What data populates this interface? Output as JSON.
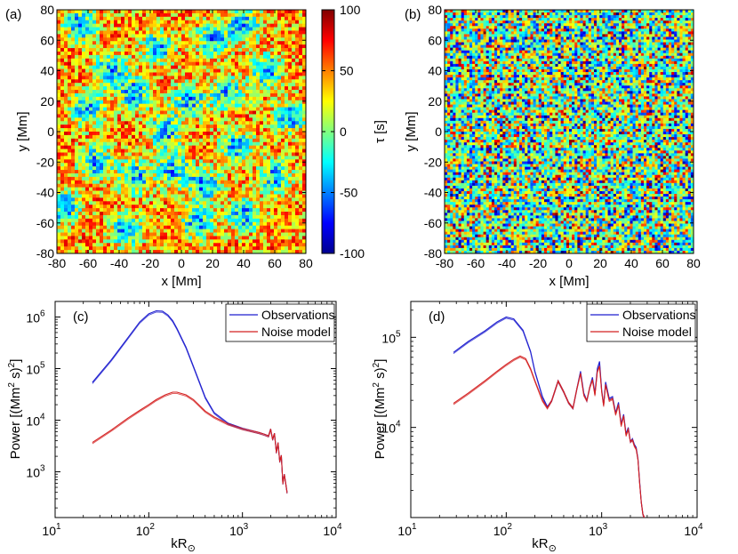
{
  "chart_data": [
    {
      "panel": "(a)",
      "type": "heatmap",
      "xlabel": "x [Mm]",
      "ylabel": "y [Mm]",
      "xlim": [
        -80,
        80
      ],
      "ylim": [
        -80,
        80
      ],
      "xticks": [
        "-80",
        "-60",
        "-40",
        "-20",
        "0",
        "20",
        "40",
        "60",
        "80"
      ],
      "yticks": [
        "-80",
        "-60",
        "-40",
        "-20",
        "0",
        "20",
        "40",
        "60",
        "80"
      ],
      "colorbar": {
        "label": "τ [s]",
        "range": [
          -100,
          100
        ],
        "ticks": [
          "100",
          "50",
          "0",
          "-50",
          "-100"
        ]
      },
      "description_values": {
        "cells": [
          [
            -65,
            70
          ],
          [
            -45,
            40
          ],
          [
            -30,
            25
          ],
          [
            -60,
            15
          ],
          [
            -55,
            -20
          ],
          [
            -30,
            -30
          ],
          [
            -5,
            -25
          ],
          [
            15,
            -35
          ],
          [
            35,
            -10
          ],
          [
            55,
            40
          ],
          [
            20,
            60
          ],
          [
            -15,
            55
          ],
          [
            40,
            70
          ],
          [
            -35,
            -65
          ],
          [
            10,
            -60
          ],
          [
            40,
            -55
          ],
          [
            60,
            -30
          ],
          [
            -75,
            -50
          ],
          [
            5,
            20
          ],
          [
            30,
            25
          ],
          [
            -10,
            0
          ],
          [
            70,
            10
          ]
        ]
      }
    },
    {
      "panel": "(b)",
      "type": "heatmap",
      "xlabel": "x [Mm]",
      "ylabel": "y [Mm]",
      "xlim": [
        -80,
        80
      ],
      "ylim": [
        -80,
        80
      ],
      "xticks": [
        "-80",
        "-60",
        "-40",
        "-20",
        "0",
        "20",
        "40",
        "60",
        "80"
      ],
      "yticks": [
        "-80",
        "-60",
        "-40",
        "-20",
        "0",
        "20",
        "40",
        "60",
        "80"
      ]
    },
    {
      "panel": "(c)",
      "type": "line",
      "xscale": "log",
      "yscale": "log",
      "xlabel": "kR",
      "xlabel_sub": "⊙",
      "ylabel": "Power [(Mm",
      "ylabel_sup1": "2",
      "ylabel_mid": " s)",
      "ylabel_sup2": "2",
      "ylabel_end": "]",
      "xlim": [
        10,
        10000
      ],
      "ylim": [
        130,
        2000000
      ],
      "xticks": [
        {
          "base": "10",
          "exp": "1",
          "v": 10
        },
        {
          "base": "10",
          "exp": "2",
          "v": 100
        },
        {
          "base": "10",
          "exp": "3",
          "v": 1000
        },
        {
          "base": "10",
          "exp": "4",
          "v": 10000
        }
      ],
      "yticks": [
        {
          "base": "10",
          "exp": "3",
          "v": 1000
        },
        {
          "base": "10",
          "exp": "4",
          "v": 10000
        },
        {
          "base": "10",
          "exp": "5",
          "v": 100000
        },
        {
          "base": "10",
          "exp": "6",
          "v": 1000000
        }
      ],
      "legend": [
        "Observations",
        "Noise model"
      ],
      "series": [
        {
          "name": "Observations",
          "color": "#1f1fcf",
          "x": [
            25,
            40,
            60,
            80,
            100,
            120,
            140,
            160,
            180,
            200,
            250,
            300,
            400,
            500,
            700,
            1000,
            1500,
            1700,
            1900,
            2000,
            2100,
            2200,
            2300,
            2400,
            2500,
            2600,
            2700,
            2800,
            3000
          ],
          "y": [
            54000,
            150000,
            400000,
            800000,
            1150000,
            1320000,
            1300000,
            1100000,
            850000,
            600000,
            260000,
            110000,
            28000,
            14000,
            8800,
            7000,
            5800,
            5400,
            5000,
            6800,
            4300,
            5600,
            2400,
            3700,
            1600,
            2100,
            600,
            900,
            400
          ]
        },
        {
          "name": "Noise model",
          "color": "#d42020",
          "x": [
            25,
            40,
            60,
            80,
            100,
            120,
            150,
            180,
            200,
            250,
            300,
            400,
            500,
            700,
            1000,
            1500,
            1700,
            1900,
            2000,
            2100,
            2200,
            2300,
            2400,
            2500,
            2600,
            2700,
            2800,
            3000
          ],
          "y": [
            3700,
            6500,
            11000,
            15500,
            20000,
            25000,
            31000,
            35000,
            35000,
            31000,
            25000,
            15000,
            11500,
            8500,
            6900,
            5800,
            5400,
            5000,
            6800,
            4300,
            5600,
            2400,
            3700,
            1600,
            2100,
            600,
            900,
            400
          ]
        }
      ]
    },
    {
      "panel": "(d)",
      "type": "line",
      "xscale": "log",
      "yscale": "log",
      "xlabel": "kR",
      "xlabel_sub": "⊙",
      "ylabel": "Power [(Mm",
      "ylabel_sup1": "2",
      "ylabel_mid": " s)",
      "ylabel_sup2": "2",
      "ylabel_end": "]",
      "xlim": [
        10,
        10000
      ],
      "ylim": [
        1000,
        250000
      ],
      "xticks": [
        {
          "base": "10",
          "exp": "1",
          "v": 10
        },
        {
          "base": "10",
          "exp": "2",
          "v": 100
        },
        {
          "base": "10",
          "exp": "3",
          "v": 1000
        },
        {
          "base": "10",
          "exp": "4",
          "v": 10000
        }
      ],
      "yticks": [
        {
          "base": "10",
          "exp": "4",
          "v": 10000
        },
        {
          "base": "10",
          "exp": "5",
          "v": 100000
        }
      ],
      "legend": [
        "Observations",
        "Noise model"
      ],
      "series": [
        {
          "name": "Observations",
          "color": "#1f1fcf",
          "x": [
            28,
            40,
            60,
            80,
            100,
            120,
            150,
            180,
            200,
            240,
            270,
            300,
            350,
            400,
            450,
            500,
            550,
            600,
            650,
            700,
            750,
            800,
            850,
            900,
            950,
            1000,
            1050,
            1100,
            1200,
            1300,
            1400,
            1500,
            1600,
            1700,
            1800,
            1900,
            2000,
            2100,
            2200,
            2300,
            2400,
            2500,
            2600,
            2700,
            2800
          ],
          "y": [
            68000,
            90000,
            118000,
            148000,
            168000,
            160000,
            120000,
            70000,
            42000,
            22000,
            17000,
            20000,
            33000,
            25000,
            19000,
            16500,
            27000,
            42000,
            24000,
            20000,
            28000,
            36000,
            24000,
            45000,
            54000,
            26000,
            18000,
            32000,
            21000,
            22000,
            14500,
            19000,
            11000,
            14000,
            8500,
            10000,
            7000,
            7500,
            6500,
            6000,
            4500,
            2500,
            1500,
            1100,
            1000
          ]
        },
        {
          "name": "Noise model",
          "color": "#d42020",
          "x": [
            28,
            40,
            60,
            80,
            100,
            120,
            140,
            160,
            180,
            200,
            240,
            270,
            300,
            350,
            400,
            450,
            500,
            550,
            600,
            650,
            700,
            750,
            800,
            850,
            900,
            950,
            1000,
            1050,
            1100,
            1200,
            1300,
            1400,
            1500,
            1600,
            1700,
            1800,
            1900,
            2000,
            2100,
            2200,
            2300,
            2400,
            2500,
            2600,
            2700,
            2800
          ],
          "y": [
            18500,
            24000,
            33000,
            42000,
            50000,
            57000,
            62000,
            58000,
            45000,
            33000,
            20000,
            16500,
            20000,
            33000,
            25000,
            19000,
            16500,
            27000,
            40000,
            23000,
            20000,
            28000,
            34000,
            23000,
            42000,
            48000,
            25000,
            17500,
            30000,
            20000,
            21000,
            14000,
            18000,
            10500,
            13500,
            8200,
            9600,
            7000,
            7300,
            6300,
            5800,
            4400,
            2400,
            1500,
            1100,
            1000
          ]
        }
      ]
    }
  ]
}
